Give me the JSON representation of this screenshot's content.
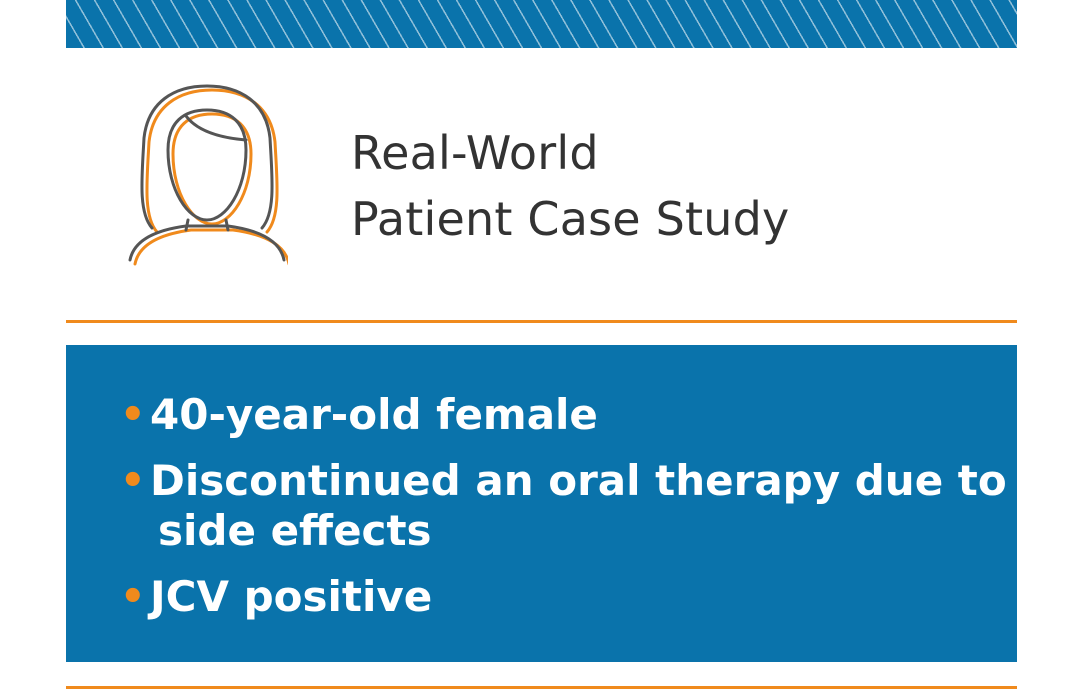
{
  "header": {
    "title_line1": "Real-World",
    "title_line2": "Patient Case Study"
  },
  "info": {
    "bullet_glyph": "•",
    "items": [
      {
        "line1": "40-year-old female"
      },
      {
        "line1": "Discontinued an oral therapy due to",
        "line2": "side effects"
      },
      {
        "line1": "JCV positive"
      }
    ]
  },
  "colors": {
    "brand_blue": "#0a73ab",
    "accent_orange": "#f08a1c",
    "title_text": "#333333",
    "avatar_outline": "#555555"
  }
}
